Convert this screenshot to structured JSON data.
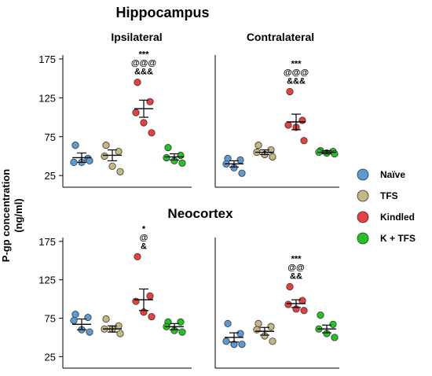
{
  "figure": {
    "ylabel_line1": "P-gp concentration",
    "ylabel_line2": "(ng/ml)"
  },
  "legend": [
    {
      "label": "Naïve",
      "color": "#5b9bd5"
    },
    {
      "label": "TFS",
      "color": "#c4b77f"
    },
    {
      "label": "Kindled",
      "color": "#e84040"
    },
    {
      "label": "K + TFS",
      "color": "#22c422"
    }
  ],
  "chart_data": [
    {
      "type": "scatter",
      "region": "Hippocampus",
      "title": "Ipsilateral",
      "yticks": [
        25,
        75,
        125,
        175
      ],
      "ylim": [
        10,
        180
      ],
      "groups": [
        {
          "group": "Naïve",
          "mean": 48,
          "sem": 6,
          "points": [
            64,
            47,
            42,
            42,
            44
          ]
        },
        {
          "group": "TFS",
          "mean": 51,
          "sem": 7,
          "points": [
            64,
            56,
            50,
            37,
            30
          ]
        },
        {
          "group": "Kindled",
          "mean": 111,
          "sem": 11,
          "points": [
            145,
            120,
            106,
            93,
            80
          ]
        },
        {
          "group": "K + TFS",
          "mean": 49,
          "sem": 4,
          "points": [
            61,
            51,
            48,
            44,
            41
          ]
        }
      ],
      "annotations": [
        {
          "group": "Kindled",
          "lines": [
            "***",
            "@@@",
            "&&&"
          ]
        }
      ]
    },
    {
      "type": "scatter",
      "region": "Hippocampus",
      "title": "Contralateral",
      "yticks": [],
      "ylim": [
        10,
        180
      ],
      "groups": [
        {
          "group": "Naïve",
          "mean": 40,
          "sem": 4,
          "points": [
            47,
            45,
            40,
            35,
            28
          ]
        },
        {
          "group": "TFS",
          "mean": 55,
          "sem": 3,
          "points": [
            64,
            58,
            55,
            52,
            49
          ]
        },
        {
          "group": "Kindled",
          "mean": 94,
          "sem": 10,
          "points": [
            133,
            96,
            90,
            87,
            70
          ]
        },
        {
          "group": "K + TFS",
          "mean": 55,
          "sem": 2,
          "points": [
            57,
            56,
            55,
            54,
            53
          ]
        }
      ],
      "annotations": [
        {
          "group": "Kindled",
          "lines": [
            "***",
            "@@@",
            "&&&"
          ]
        }
      ]
    },
    {
      "type": "scatter",
      "region": "Neocortex",
      "title": "",
      "yticks": [
        25,
        75,
        125,
        175
      ],
      "ylim": [
        10,
        180
      ],
      "groups": [
        {
          "group": "Naïve",
          "mean": 67,
          "sem": 7,
          "points": [
            80,
            76,
            72,
            60,
            57
          ]
        },
        {
          "group": "TFS",
          "mean": 61,
          "sem": 4,
          "points": [
            74,
            65,
            61,
            61,
            55
          ]
        },
        {
          "group": "Kindled",
          "mean": 99,
          "sem": 14,
          "points": [
            155,
            104,
            97,
            83,
            77
          ]
        },
        {
          "group": "K + TFS",
          "mean": 64,
          "sem": 4,
          "points": [
            70,
            70,
            64,
            59,
            57
          ]
        }
      ],
      "annotations": [
        {
          "group": "Kindled",
          "lines": [
            "*",
            "@",
            "&"
          ]
        }
      ]
    },
    {
      "type": "scatter",
      "region": "Neocortex",
      "title": "",
      "yticks": [],
      "ylim": [
        10,
        180
      ],
      "groups": [
        {
          "group": "Naïve",
          "mean": 50,
          "sem": 6,
          "points": [
            68,
            55,
            45,
            41,
            41
          ]
        },
        {
          "group": "TFS",
          "mean": 58,
          "sem": 5,
          "points": [
            68,
            64,
            60,
            52,
            45
          ]
        },
        {
          "group": "Kindled",
          "mean": 94,
          "sem": 5,
          "points": [
            116,
            98,
            93,
            87,
            85
          ]
        },
        {
          "group": "K + TFS",
          "mean": 61,
          "sem": 5,
          "points": [
            79,
            67,
            61,
            55,
            50
          ]
        }
      ],
      "annotations": [
        {
          "group": "Kindled",
          "lines": [
            "***",
            "@@",
            "&&"
          ]
        }
      ]
    }
  ],
  "section_titles": {
    "top": "Hippocampus",
    "bottom": "Neocortex"
  }
}
